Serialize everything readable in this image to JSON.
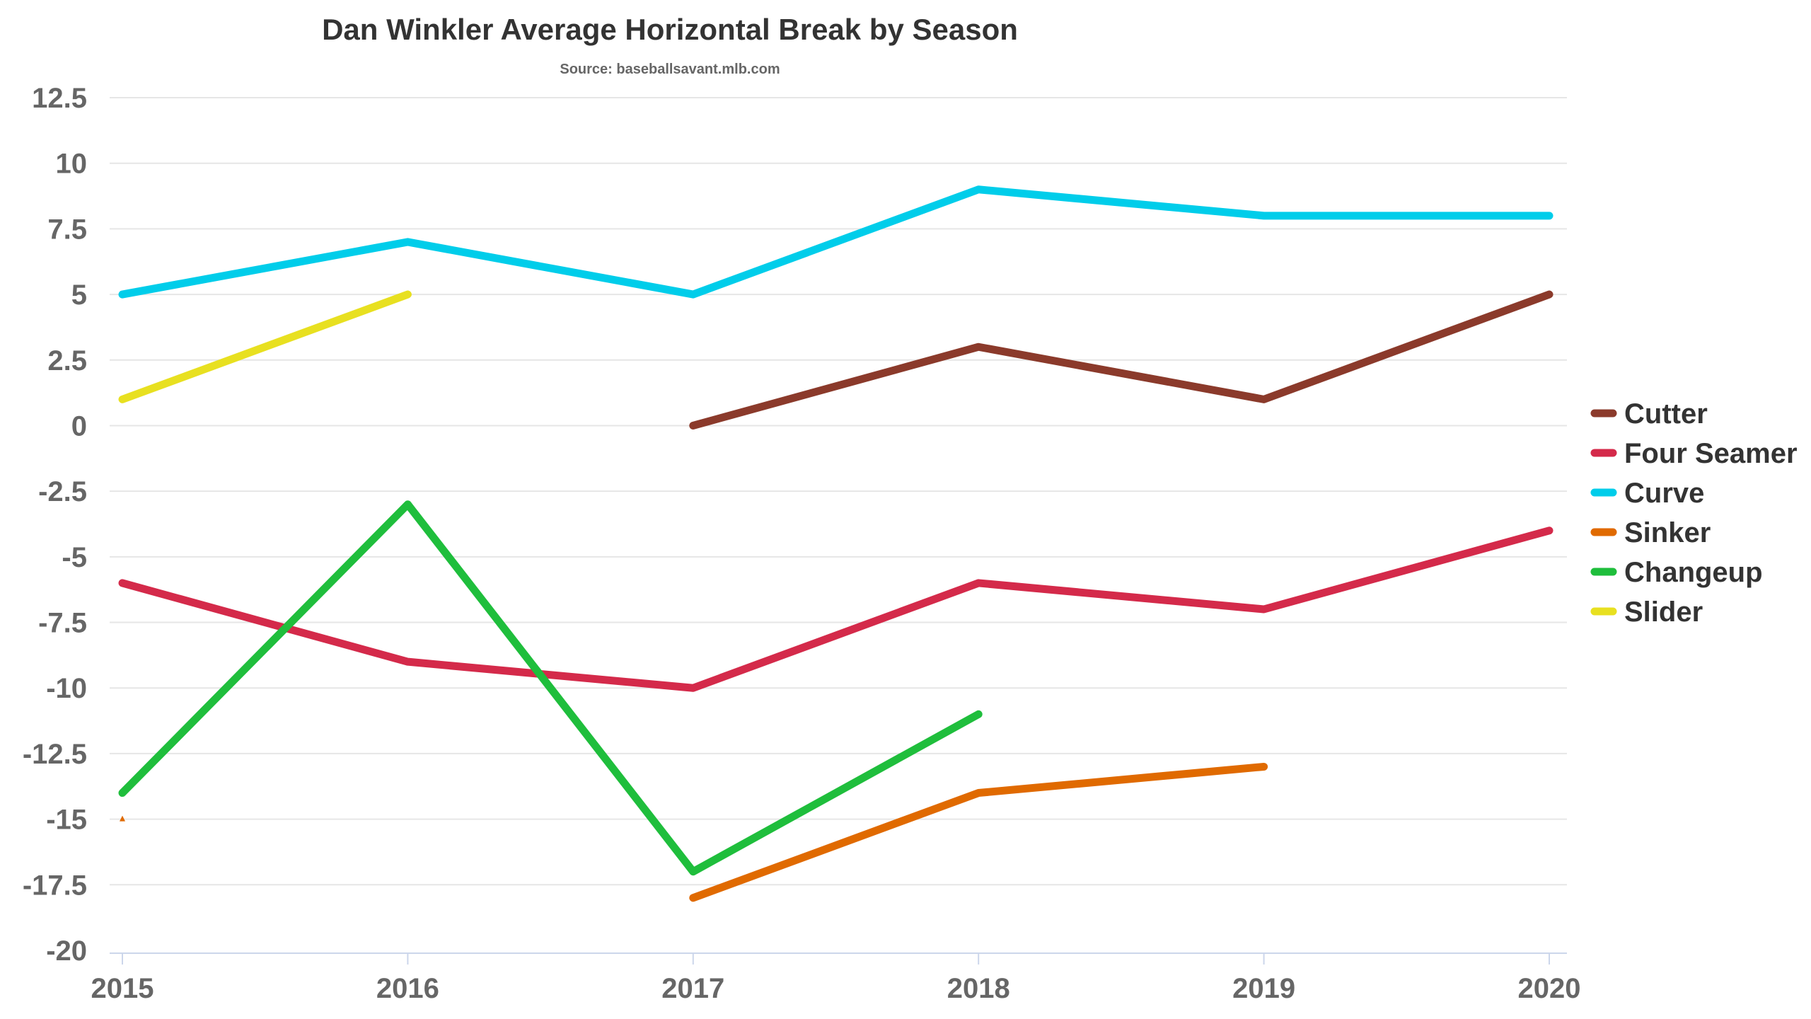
{
  "chart_data": {
    "type": "line",
    "title": "Dan Winkler Average Horizontal Break by Season",
    "subtitle": "Source: baseballsavant.mlb.com",
    "xlabel": "",
    "ylabel": "",
    "x": [
      "2015",
      "2016",
      "2017",
      "2018",
      "2019",
      "2020"
    ],
    "ylim": [
      -20,
      12.5
    ],
    "yticks": [
      "12.5",
      "10",
      "7.5",
      "5",
      "2.5",
      "0",
      "-2.5",
      "-5",
      "-7.5",
      "-10",
      "-12.5",
      "-15",
      "-17.5",
      "-20"
    ],
    "grid": true,
    "legend_position": "right",
    "series": [
      {
        "name": "Cutter",
        "color": "#8b3a2b",
        "values": [
          null,
          null,
          0,
          3,
          1,
          5
        ]
      },
      {
        "name": "Four Seamer",
        "color": "#d42a4a",
        "values": [
          -6,
          -9,
          -10,
          -6,
          -7,
          -4
        ]
      },
      {
        "name": "Curve",
        "color": "#00cdea",
        "values": [
          5,
          7,
          5,
          9,
          8,
          8
        ]
      },
      {
        "name": "Sinker",
        "color": "#e06a00",
        "values": [
          -15,
          null,
          -18,
          -14,
          -13,
          null
        ]
      },
      {
        "name": "Changeup",
        "color": "#1fbe3c",
        "values": [
          -14,
          -3,
          -17,
          -11,
          null,
          null
        ]
      },
      {
        "name": "Slider",
        "color": "#e8e020",
        "values": [
          1,
          5,
          null,
          null,
          null,
          null
        ]
      }
    ]
  }
}
